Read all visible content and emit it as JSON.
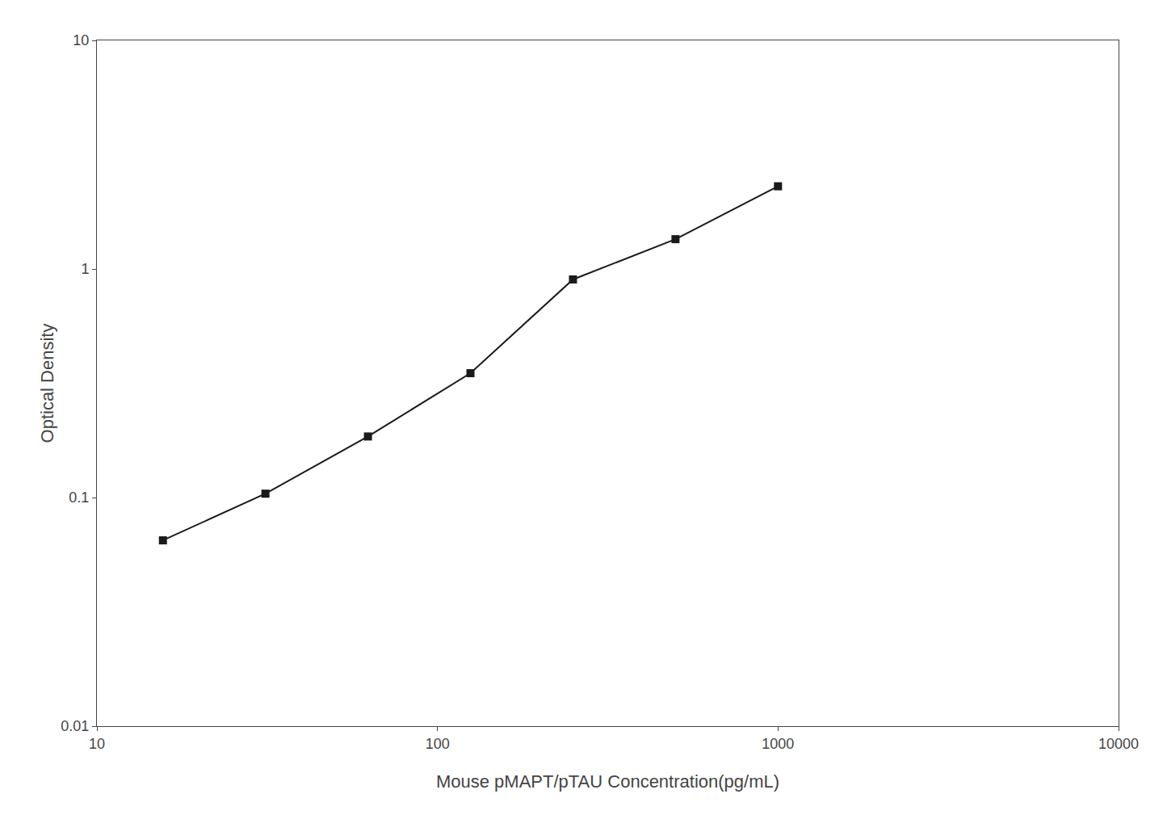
{
  "chart_data": {
    "type": "line",
    "x": [
      15.625,
      31.25,
      62.5,
      125,
      250,
      500,
      1000
    ],
    "values": [
      0.065,
      0.104,
      0.185,
      0.35,
      0.9,
      1.35,
      2.3
    ],
    "xlabel": "Mouse pMAPT/pTAU Concentration(pg/mL)",
    "ylabel": "Optical Density",
    "xlim": [
      10,
      10000
    ],
    "ylim": [
      0.01,
      10
    ],
    "xticks": [
      10,
      100,
      1000,
      10000
    ],
    "yticks": [
      0.01,
      0.1,
      1,
      10
    ],
    "log": true,
    "grid": false,
    "color": "#1a1a1a",
    "marker": "square",
    "line_style": "solid"
  }
}
